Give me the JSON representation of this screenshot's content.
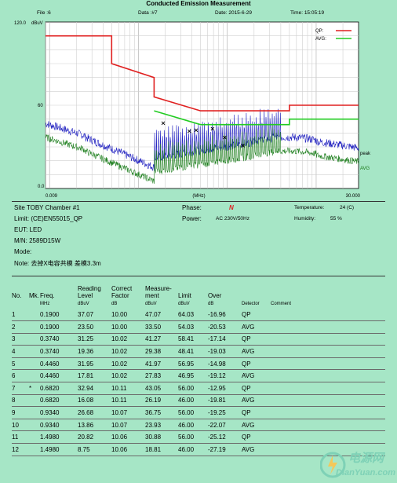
{
  "header": {
    "title": "Conducted Emission Measurement",
    "file": "File :6",
    "data": "Data :#7",
    "date": "Date: 2015-6-29",
    "time": "Time: 15:05:19"
  },
  "info": {
    "site": "Site  TOBY Chamber #1",
    "limit": "Limit:  (CE)EN55015_QP",
    "eut": "EUT:  LED",
    "mn": "M/N:   2589D15W",
    "mode": "Mode:",
    "note": "Note:  去掉X电容共模 差模3.3m",
    "phase_label": "Phase:",
    "phase_value": "N",
    "power_label": "Power:",
    "power_value": "AC 230V/50Hz",
    "temperature_label": "Temperature:",
    "temperature_value": "24 (C)",
    "humidity_label": "Humidity:",
    "humidity_value": "55 %"
  },
  "table": {
    "headers": {
      "no": "No.",
      "mk": "Mk.",
      "freq": "Freq.",
      "reading": "Reading",
      "reading2": "Level",
      "correct": "Correct",
      "correct2": "Factor",
      "measure": "Measure-",
      "measure2": "ment",
      "limit": "Limit",
      "over": "Over"
    },
    "units": {
      "freq": "MHz",
      "reading": "dBuV",
      "correct": "dB",
      "measure": "dBuV",
      "limit": "dBuV",
      "over": "dB",
      "detector": "Detector",
      "comment": "Comment"
    },
    "rows": [
      {
        "no": "1",
        "mk": "",
        "freq": "0.1900",
        "reading": "37.07",
        "factor": "10.00",
        "measure": "47.07",
        "limit": "64.03",
        "over": "-16.96",
        "detector": "QP"
      },
      {
        "no": "2",
        "mk": "",
        "freq": "0.1900",
        "reading": "23.50",
        "factor": "10.00",
        "measure": "33.50",
        "limit": "54.03",
        "over": "-20.53",
        "detector": "AVG"
      },
      {
        "no": "3",
        "mk": "",
        "freq": "0.3740",
        "reading": "31.25",
        "factor": "10.02",
        "measure": "41.27",
        "limit": "58.41",
        "over": "-17.14",
        "detector": "QP"
      },
      {
        "no": "4",
        "mk": "",
        "freq": "0.3740",
        "reading": "19.36",
        "factor": "10.02",
        "measure": "29.38",
        "limit": "48.41",
        "over": "-19.03",
        "detector": "AVG"
      },
      {
        "no": "5",
        "mk": "",
        "freq": "0.4460",
        "reading": "31.95",
        "factor": "10.02",
        "measure": "41.97",
        "limit": "56.95",
        "over": "-14.98",
        "detector": "QP"
      },
      {
        "no": "6",
        "mk": "",
        "freq": "0.4460",
        "reading": "17.81",
        "factor": "10.02",
        "measure": "27.83",
        "limit": "46.95",
        "over": "-19.12",
        "detector": "AVG"
      },
      {
        "no": "7",
        "mk": "*",
        "freq": "0.6820",
        "reading": "32.94",
        "factor": "10.11",
        "measure": "43.05",
        "limit": "56.00",
        "over": "-12.95",
        "detector": "QP"
      },
      {
        "no": "8",
        "mk": "",
        "freq": "0.6820",
        "reading": "16.08",
        "factor": "10.11",
        "measure": "26.19",
        "limit": "46.00",
        "over": "-19.81",
        "detector": "AVG"
      },
      {
        "no": "9",
        "mk": "",
        "freq": "0.9340",
        "reading": "26.68",
        "factor": "10.07",
        "measure": "36.75",
        "limit": "56.00",
        "over": "-19.25",
        "detector": "QP"
      },
      {
        "no": "10",
        "mk": "",
        "freq": "0.9340",
        "reading": "13.86",
        "factor": "10.07",
        "measure": "23.93",
        "limit": "46.00",
        "over": "-22.07",
        "detector": "AVG"
      },
      {
        "no": "11",
        "mk": "",
        "freq": "1.4980",
        "reading": "20.82",
        "factor": "10.06",
        "measure": "30.88",
        "limit": "56.00",
        "over": "-25.12",
        "detector": "QP"
      },
      {
        "no": "12",
        "mk": "",
        "freq": "1.4980",
        "reading": "8.75",
        "factor": "10.06",
        "measure": "18.81",
        "limit": "46.00",
        "over": "-27.19",
        "detector": "AVG"
      }
    ]
  },
  "watermark": {
    "text": "电源网",
    "url": "DianYuan.com"
  },
  "chart_data": {
    "type": "line",
    "xscale": "log",
    "xlim": [
      0.009,
      30.0
    ],
    "ylim": [
      0,
      120
    ],
    "ylabel": "dBuV",
    "xlabel": "(MHz)",
    "ytick_labels": [
      "120.0",
      "60",
      "0.0"
    ],
    "yticks": [
      120,
      60,
      0
    ],
    "xtick_labels": [
      "0.009",
      "(MHz)",
      "30.000"
    ],
    "grid": true,
    "legend": "top-right",
    "legend_entries": [
      "QP:",
      "AVG:"
    ],
    "colors": {
      "qp": "#e02020",
      "avg": "#22cc22",
      "peak": "#2020c0",
      "avg_trace": "#208020"
    },
    "trace_labels": [
      "peak",
      "AVG"
    ],
    "series": [
      {
        "name": "QP:",
        "kind": "limit",
        "x": [
          0.009,
          0.05,
          0.05,
          0.15,
          0.15,
          0.5,
          0.5,
          5.0,
          5.0,
          30.0
        ],
        "y": [
          110,
          110,
          90,
          80,
          66,
          56,
          56,
          56,
          60,
          60
        ]
      },
      {
        "name": "AVG:",
        "kind": "limit",
        "x": [
          0.15,
          0.5,
          0.5,
          5.0,
          5.0,
          30.0
        ],
        "y": [
          56,
          46,
          46,
          46,
          50,
          50
        ]
      }
    ],
    "markers": {
      "x": [
        0.19,
        0.374,
        0.446,
        0.682,
        0.934,
        1.498
      ],
      "y": [
        47.07,
        41.27,
        41.97,
        43.05,
        36.75,
        30.88
      ],
      "symbol": "x"
    }
  }
}
